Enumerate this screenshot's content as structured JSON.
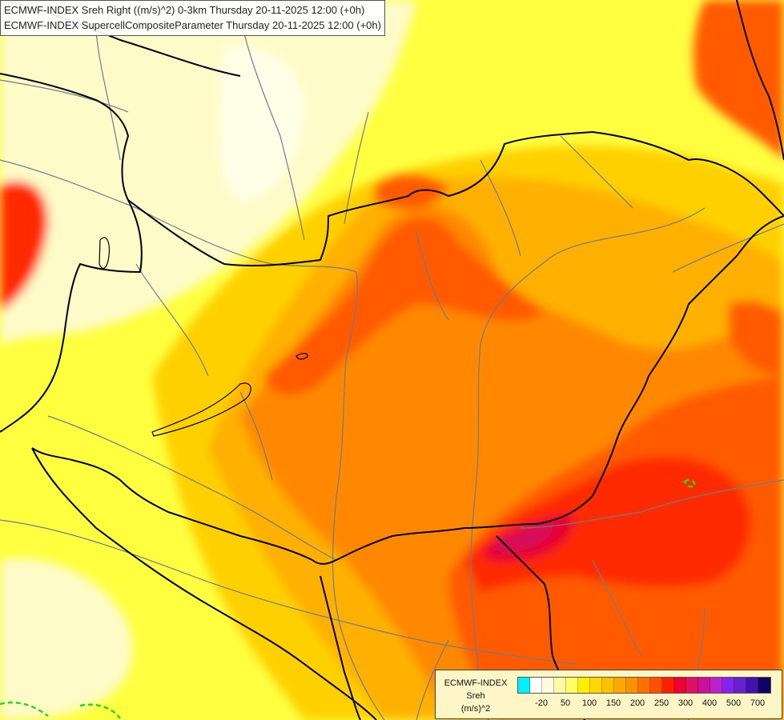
{
  "header": {
    "line1": "ECMWF-INDEX Sreh Right ((m/s)^2) 0-3km Thursday 20-11-2025 12:00 (+0h)",
    "line2": "ECMWF-INDEX SupercellCompositeParameter Thursday 20-11-2025 12:00 (+0h)"
  },
  "legend": {
    "source": "ECMWF-INDEX",
    "variable": "Sreh",
    "unit": "(m/s)^2",
    "colors": [
      "#00f0ff",
      "#ffffff",
      "#fffbdc",
      "#fff8a8",
      "#ffff60",
      "#ffee00",
      "#ffd800",
      "#ffc000",
      "#ffa800",
      "#ff9000",
      "#ff7000",
      "#ff5000",
      "#ff2000",
      "#ee0030",
      "#dd1066",
      "#cc1099",
      "#bb22cc",
      "#8822ee",
      "#6622cc",
      "#4411aa",
      "#110066"
    ],
    "ticks": [
      {
        "label": "-20",
        "index": 1
      },
      {
        "label": "50",
        "index": 3
      },
      {
        "label": "100",
        "index": 5
      },
      {
        "label": "150",
        "index": 7
      },
      {
        "label": "200",
        "index": 9
      },
      {
        "label": "250",
        "index": 11
      },
      {
        "label": "300",
        "index": 13
      },
      {
        "label": "400",
        "index": 15
      },
      {
        "label": "500",
        "index": 17
      },
      {
        "label": "700",
        "index": 19
      }
    ]
  },
  "map": {
    "field_colors": {
      "base": "#ffff40",
      "light": "#fffbc8",
      "pale": "#ffffe8",
      "amber": "#ffd000",
      "orange": "#ffb000",
      "deep_orange": "#ff8800",
      "red_orange": "#ff5a00",
      "red": "#ff2a00",
      "crimson": "#e8002e",
      "magenta": "#d4105a",
      "scp_contour": "#22dd22"
    },
    "border_color": "#000000",
    "river_color": "#6a7d92"
  }
}
